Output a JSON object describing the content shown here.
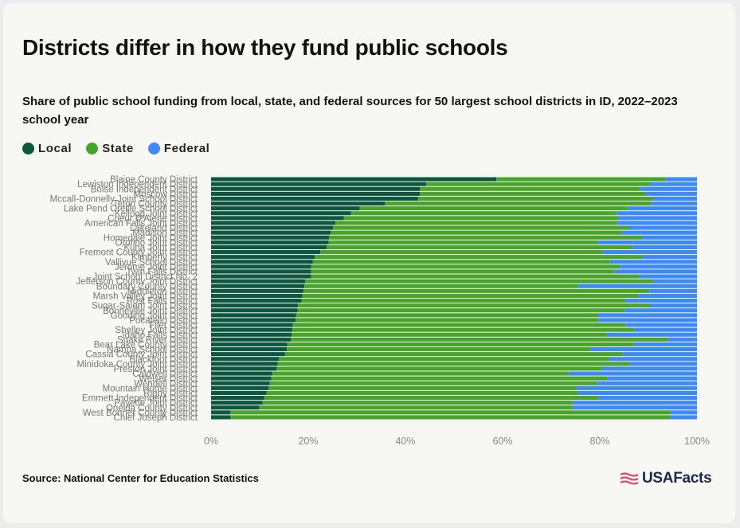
{
  "title": "Districts differ in how they fund public schools",
  "subtitle": "Share of public school funding from local, state, and federal sources for 50 largest school districts in ID, 2022–2023 school year",
  "source": "Source: National Center for Education Statistics",
  "brand": "USAFacts",
  "legend": [
    {
      "label": "Local",
      "color": "#0d5640"
    },
    {
      "label": "State",
      "color": "#4aa42c"
    },
    {
      "label": "Federal",
      "color": "#3d89f5"
    }
  ],
  "chart_data": {
    "type": "bar",
    "orientation": "horizontal",
    "stacked": true,
    "xlim": [
      0,
      100
    ],
    "xticks": [
      "0%",
      "20%",
      "40%",
      "60%",
      "80%",
      "100%"
    ],
    "categories": [
      "Blaine County District",
      "Lewiston Independent District",
      "Boise Independent District",
      "Moscow District",
      "Mccall-Donnelly Joint School District",
      "Teton County District",
      "Lake Pend Oreille School District",
      "Kellogg Joint District",
      "Coeur D'Alene District",
      "American Falls Joint District",
      "Lakeland District",
      "Madison District",
      "Homedale Joint District",
      "Orofino Joint District",
      "Kuna Joint District",
      "Fremont County Joint District",
      "Kimberly District",
      "Vallivue School District",
      "Jerome Joint District",
      "Twin Falls District",
      "Joint School District No. 2",
      "Jefferson County Joint District",
      "Boundary County District",
      "Middleton District",
      "Marsh Valley Joint District",
      "Post Falls District",
      "Sugar-Salem Joint District",
      "Bonneville Joint District",
      "Gooding Joint District",
      "Pocatello District",
      "Filer District",
      "Shelley Joint District",
      "Idaho Falls District",
      "Snake River District",
      "Bear Lake County District",
      "Nampa School District",
      "Cassia County Joint District",
      "Blackfoot District",
      "Minidoka County Joint District",
      "Preston Joint District",
      "Caldwell District",
      "Weiser District",
      "Wendell District",
      "Mountain Home District",
      "Rigby District",
      "Emmett Independent District",
      "Payette Joint District",
      "Oneida County District",
      "West Bonner County District",
      "Chief Joseph District"
    ],
    "series": [
      {
        "name": "Local",
        "values": [
          58.7,
          44.3,
          43.0,
          43.0,
          42.6,
          35.8,
          30.6,
          28.8,
          27.3,
          25.6,
          25.1,
          24.6,
          24.3,
          24.2,
          23.8,
          22.5,
          21.3,
          20.9,
          20.6,
          20.6,
          20.6,
          19.4,
          19.2,
          19.0,
          18.8,
          18.6,
          17.9,
          17.8,
          17.5,
          17.4,
          16.8,
          16.7,
          16.6,
          16.4,
          15.7,
          15.6,
          15.2,
          14.0,
          13.7,
          13.5,
          12.6,
          12.4,
          12.1,
          11.8,
          11.4,
          10.9,
          10.6,
          9.9,
          4.0,
          4.0
        ]
      },
      {
        "name": "State",
        "values": [
          34.8,
          46.1,
          45.3,
          46.4,
          48.4,
          54.7,
          55.1,
          54.6,
          56.6,
          57.9,
          60.8,
          59.9,
          64.4,
          55.4,
          62.9,
          58.1,
          67.5,
          61.2,
          63.6,
          62.4,
          67.4,
          71.6,
          56.4,
          71.2,
          69.2,
          66.7,
          72.5,
          67.4,
          62.1,
          62.3,
          68.5,
          70.4,
          64.8,
          77.6,
          71.3,
          62.4,
          69.6,
          67.9,
          72.5,
          66.9,
          60.9,
          69.1,
          67.3,
          63.2,
          64.1,
          68.8,
          63.9,
          64.5,
          90.5,
          90.5
        ]
      },
      {
        "name": "Federal",
        "values": [
          6.5,
          9.6,
          11.7,
          10.6,
          9.0,
          9.5,
          14.3,
          16.6,
          16.1,
          16.5,
          14.1,
          15.5,
          11.3,
          20.4,
          13.3,
          19.4,
          11.2,
          17.9,
          15.8,
          17.0,
          12.0,
          9.0,
          24.4,
          9.8,
          12.0,
          14.7,
          9.6,
          14.8,
          20.4,
          20.3,
          14.7,
          12.9,
          18.6,
          6.0,
          13.0,
          22.0,
          15.2,
          18.1,
          13.8,
          19.6,
          26.5,
          18.5,
          20.6,
          25.0,
          24.5,
          20.3,
          25.5,
          25.6,
          5.5,
          5.5
        ]
      }
    ]
  }
}
